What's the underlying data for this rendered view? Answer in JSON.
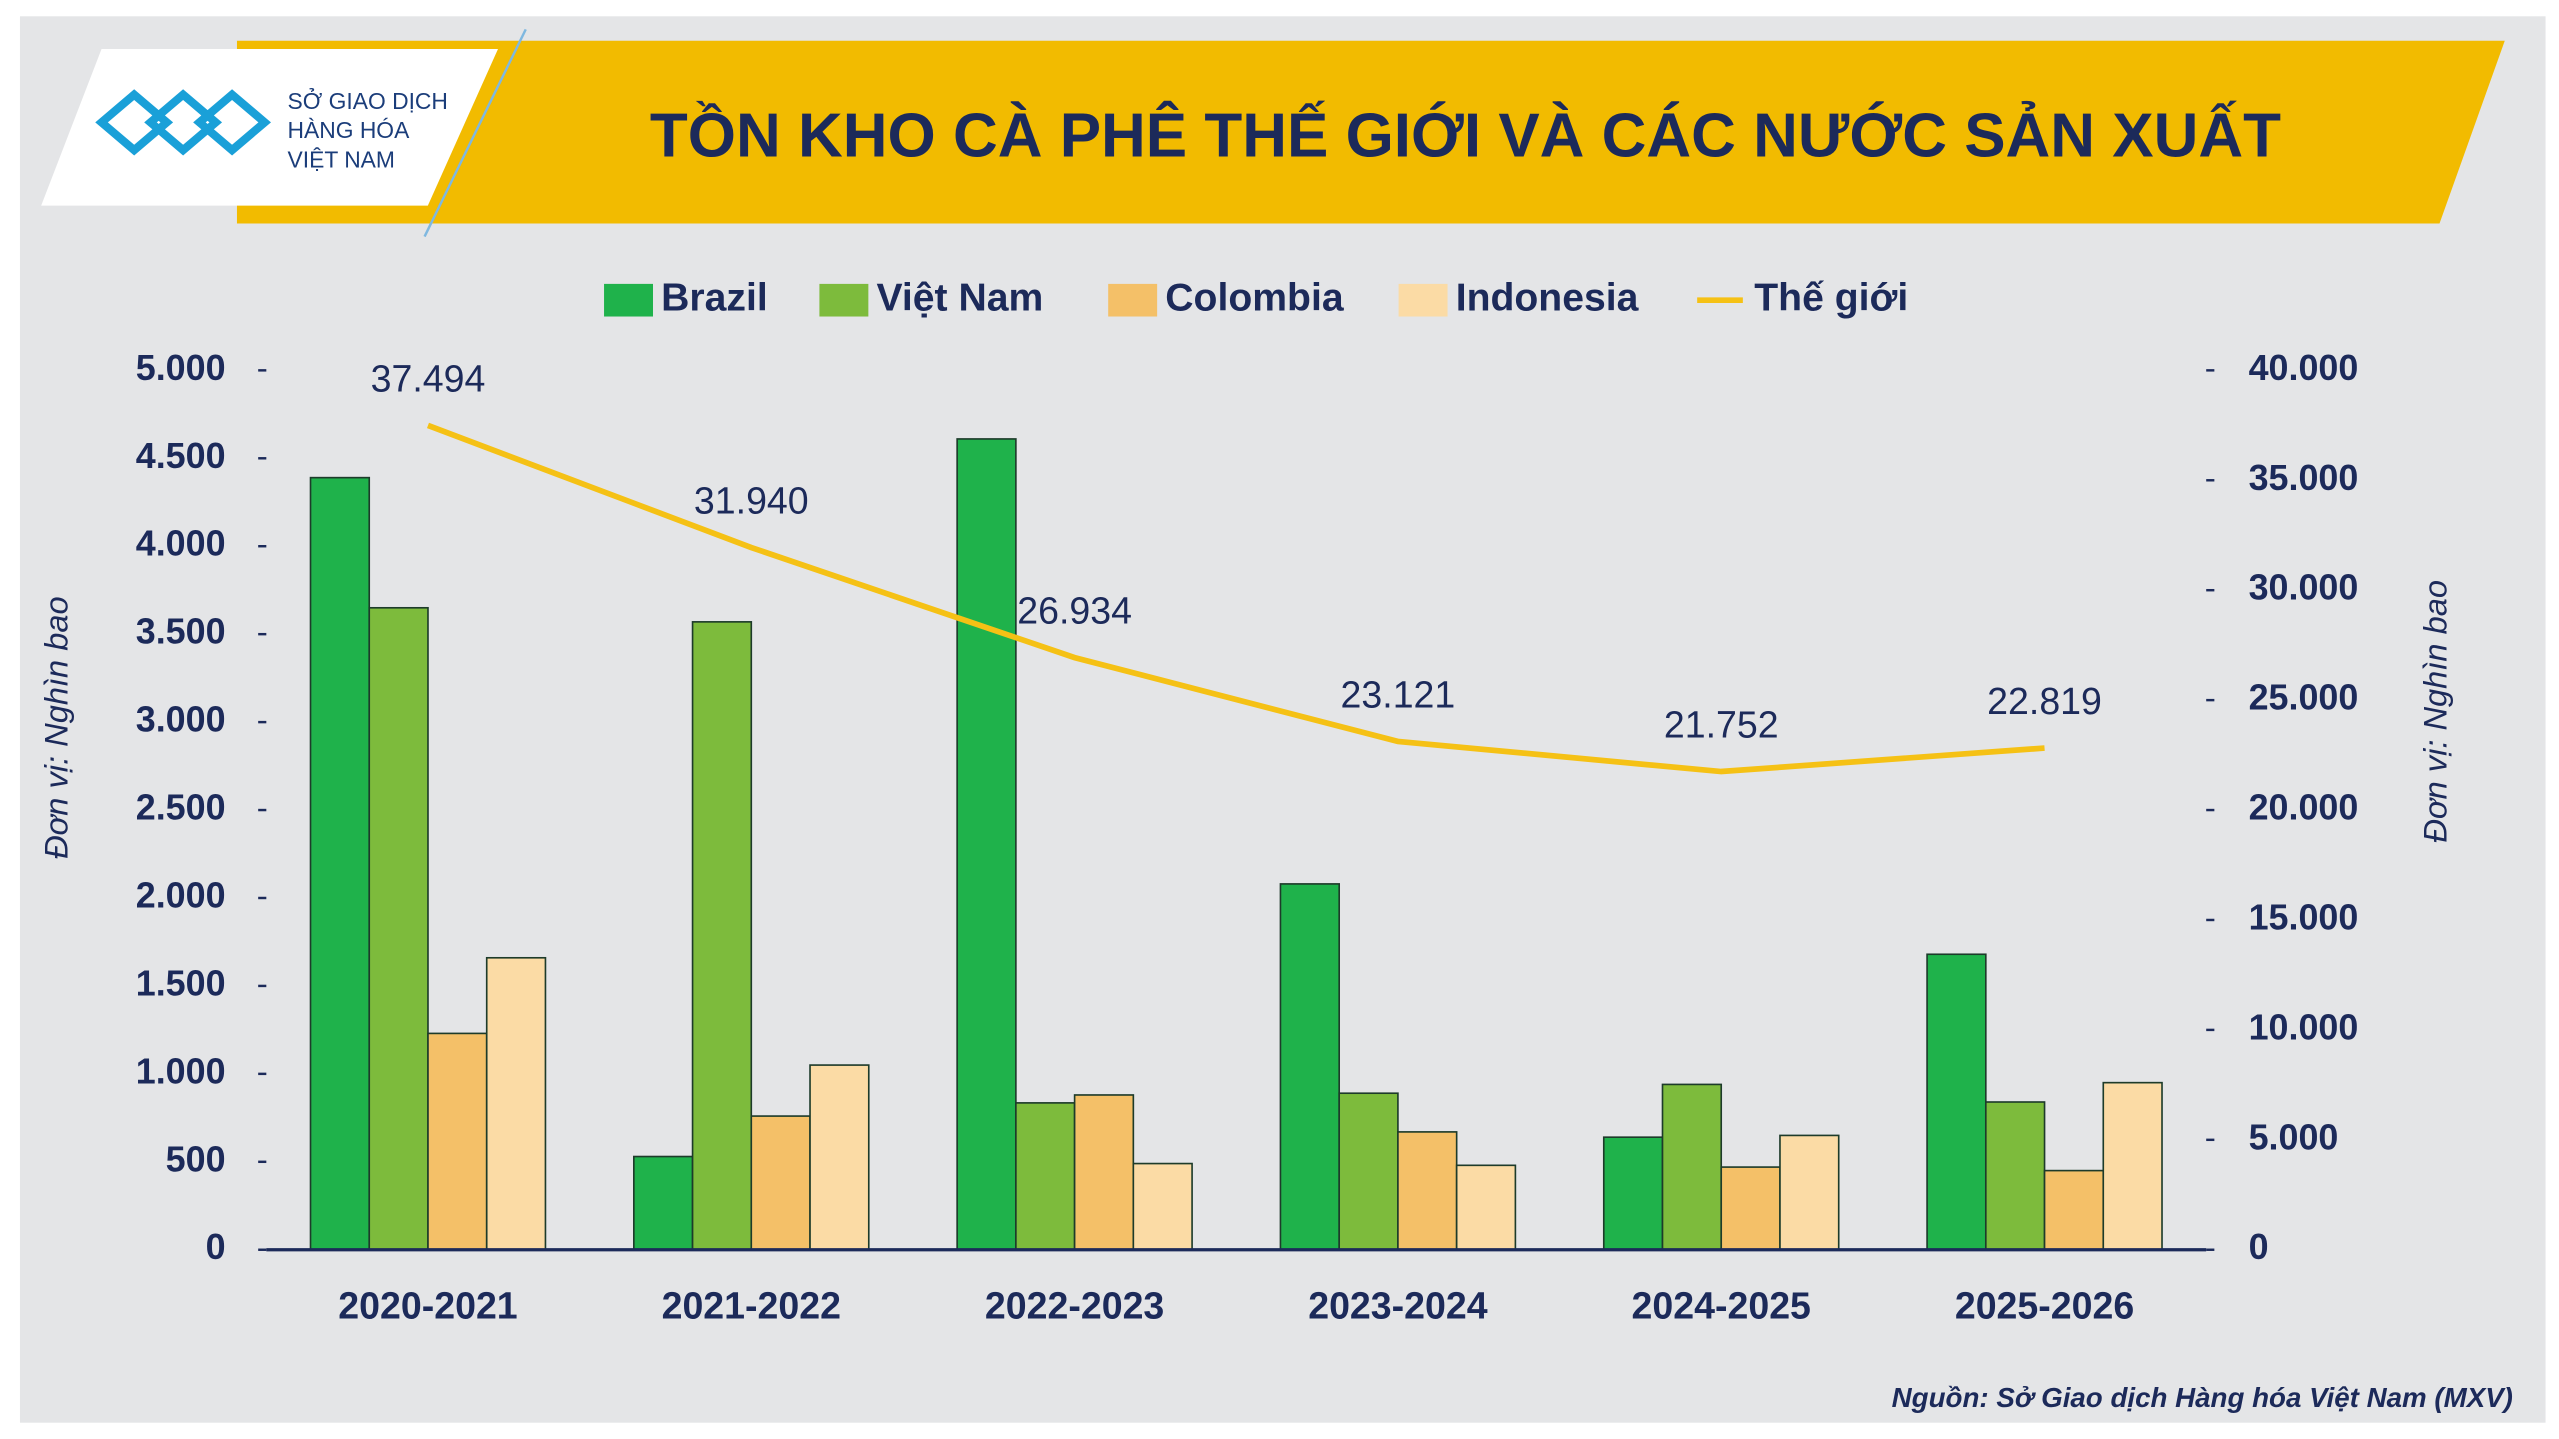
{
  "logo": {
    "lines": [
      "SỞ GIAO DỊCH",
      "HÀNG HÓA",
      "VIỆT NAM"
    ]
  },
  "source": "Nguồn: Sở Giao dịch Hàng hóa Việt Nam (MXV)",
  "chart_data": {
    "type": "bar",
    "title": "TỒN KHO CÀ PHÊ THẾ GIỚI VÀ CÁC NƯỚC SẢN XUẤT",
    "categories": [
      "2020-2021",
      "2021-2022",
      "2022-2023",
      "2023-2024",
      "2024-2025",
      "2025-2026"
    ],
    "series": [
      {
        "name": "Brazil",
        "type": "bar",
        "color": "#1fb24b",
        "values": [
          4390,
          530,
          4610,
          2080,
          640,
          1680
        ]
      },
      {
        "name": "Việt Nam",
        "type": "bar",
        "color": "#7dbb3c",
        "values": [
          3650,
          3570,
          835,
          890,
          940,
          840
        ]
      },
      {
        "name": "Colombia",
        "type": "bar",
        "color": "#f4c068",
        "values": [
          1230,
          760,
          880,
          670,
          470,
          450
        ]
      },
      {
        "name": "Indonesia",
        "type": "bar",
        "color": "#fbdba5",
        "values": [
          1660,
          1050,
          490,
          480,
          650,
          950
        ]
      },
      {
        "name": "Thế giới",
        "type": "line",
        "axis": "y2",
        "color": "#f5c115",
        "values": [
          37494,
          31940,
          26934,
          23121,
          21752,
          22819
        ],
        "value_labels": [
          "37.494",
          "31.940",
          "26.934",
          "23.121",
          "21.752",
          "22.819"
        ]
      }
    ],
    "ylabel": "Đơn vị: Nghìn bao",
    "y2label": "Đơn vị: Nghìn bao",
    "ylim": [
      0,
      5000
    ],
    "yticks": [
      0,
      500,
      {
        "value": 1000,
        "label": "1.000"
      },
      {
        "value": 1500,
        "label": "1.500"
      },
      {
        "value": 2000,
        "label": "2.000"
      },
      {
        "value": 2500,
        "label": "2.500"
      },
      {
        "value": 3000,
        "label": "3.000"
      },
      {
        "value": 3500,
        "label": "3.500"
      },
      {
        "value": 4000,
        "label": "4.000"
      },
      {
        "value": 4500,
        "label": "4.500"
      },
      {
        "value": 5000,
        "label": "5.000"
      }
    ],
    "y2lim": [
      0,
      40000
    ],
    "y2ticks": [
      0,
      {
        "value": 5000,
        "label": "5.000"
      },
      {
        "value": 10000,
        "label": "10.000"
      },
      {
        "value": 15000,
        "label": "15.000"
      },
      {
        "value": 20000,
        "label": "20.000"
      },
      {
        "value": 25000,
        "label": "25.000"
      },
      {
        "value": 30000,
        "label": "30.000"
      },
      {
        "value": 35000,
        "label": "35.000"
      },
      {
        "value": 40000,
        "label": "40.000"
      }
    ],
    "legend": "top"
  }
}
